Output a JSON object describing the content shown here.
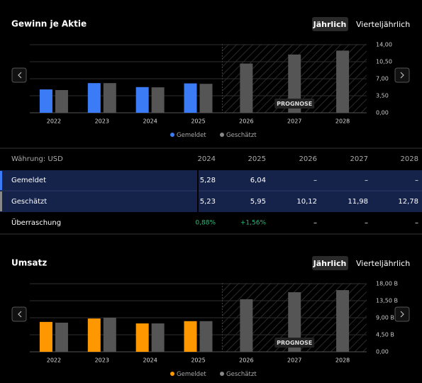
{
  "tabs": [
    "Jährlich",
    "Vierteljährlich"
  ],
  "chart_data": [
    {
      "type": "bar",
      "title": "Gewinn je Aktie",
      "annotation": "PROGNOSE",
      "categories": [
        "2022",
        "2023",
        "2024",
        "2025",
        "2026",
        "2027",
        "2028"
      ],
      "series": [
        {
          "name": "Gemeldet",
          "color": "#3b7cf6",
          "values": [
            4.8,
            6.1,
            5.28,
            6.04,
            null,
            null,
            null
          ]
        },
        {
          "name": "Geschätzt",
          "color": "#555555",
          "values": [
            4.67,
            6.1,
            5.23,
            5.95,
            10.12,
            11.98,
            12.78
          ]
        }
      ],
      "ylim": [
        0,
        14
      ],
      "yticks": [
        {
          "value": 0,
          "label": "0,00"
        },
        {
          "value": 3.5,
          "label": "3,50"
        },
        {
          "value": 7,
          "label": "7,00"
        },
        {
          "value": 10.5,
          "label": "10,50"
        },
        {
          "value": 14,
          "label": "14,00"
        }
      ],
      "grid": true
    },
    {
      "type": "bar",
      "title": "Umsatz",
      "annotation": "PROGNOSE",
      "categories": [
        "2022",
        "2023",
        "2024",
        "2025",
        "2026",
        "2027",
        "2028"
      ],
      "series": [
        {
          "name": "Gemeldet",
          "color": "#ff9800",
          "values": [
            7.9,
            8.8,
            7.5,
            8.1,
            null,
            null,
            null
          ]
        },
        {
          "name": "Geschätzt",
          "color": "#555555",
          "values": [
            7.7,
            9.0,
            7.5,
            8.1,
            13.9,
            15.75,
            16.3
          ]
        }
      ],
      "ylim": [
        0,
        18
      ],
      "yticks": [
        {
          "value": 0,
          "label": "0,00"
        },
        {
          "value": 4.5,
          "label": "4,50 B"
        },
        {
          "value": 9,
          "label": "9,00 B"
        },
        {
          "value": 13.5,
          "label": "13,50 B"
        },
        {
          "value": 18,
          "label": "18,00 B"
        }
      ],
      "grid": true
    }
  ],
  "table": {
    "caption": "Währung: USD",
    "columns": [
      "2024",
      "2025",
      "2026",
      "2027",
      "2028"
    ],
    "rows": [
      {
        "label": "Gemeldet",
        "values": [
          "5,28",
          "6,04",
          "–",
          "–",
          "–"
        ]
      },
      {
        "label": "Geschätzt",
        "values": [
          "5,23",
          "5,95",
          "10,12",
          "11,98",
          "12,78"
        ]
      },
      {
        "label": "Überraschung",
        "values": [
          "0,88%",
          "+1,56%",
          "–",
          "–",
          "–"
        ]
      }
    ]
  }
}
